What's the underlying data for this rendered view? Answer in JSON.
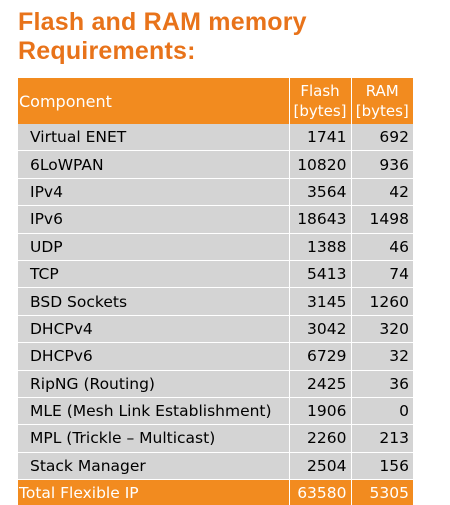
{
  "title_line1": "Flash and RAM memory",
  "title_line2": "Requirements:",
  "colors": {
    "accent": "#e8731a",
    "header_fill": "#f28b1f",
    "row_fill": "#d4d4d4"
  },
  "table": {
    "header": {
      "component": "Component",
      "flash_line1": "Flash",
      "flash_line2": "[bytes]",
      "ram_line1": "RAM",
      "ram_line2": "[bytes]"
    },
    "rows": [
      {
        "component": "Virtual ENET",
        "flash": "1741",
        "ram": "692"
      },
      {
        "component": "6LoWPAN",
        "flash": "10820",
        "ram": "936"
      },
      {
        "component": "IPv4",
        "flash": "3564",
        "ram": "42"
      },
      {
        "component": "IPv6",
        "flash": "18643",
        "ram": "1498"
      },
      {
        "component": "UDP",
        "flash": "1388",
        "ram": "46"
      },
      {
        "component": "TCP",
        "flash": "5413",
        "ram": "74"
      },
      {
        "component": "BSD Sockets",
        "flash": "3145",
        "ram": "1260"
      },
      {
        "component": "DHCPv4",
        "flash": "3042",
        "ram": "320"
      },
      {
        "component": "DHCPv6",
        "flash": "6729",
        "ram": "32"
      },
      {
        "component": "RipNG (Routing)",
        "flash": "2425",
        "ram": "36"
      },
      {
        "component": "MLE (Mesh Link Establishment)",
        "flash": "1906",
        "ram": "0"
      },
      {
        "component": "MPL (Trickle – Multicast)",
        "flash": "2260",
        "ram": "213"
      },
      {
        "component": "Stack Manager",
        "flash": "2504",
        "ram": "156"
      }
    ],
    "total": {
      "component": "Total Flexible IP",
      "flash": "63580",
      "ram": "5305"
    }
  }
}
